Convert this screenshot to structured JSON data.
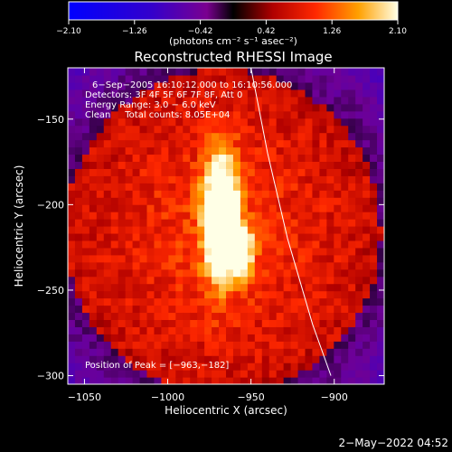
{
  "chart_data": {
    "type": "heatmap",
    "title": "Reconstructed RHESSI Image",
    "xlabel": "Heliocentric X (arcsec)",
    "ylabel": "Heliocentric Y (arcsec)",
    "xlim": [
      -1060,
      -870
    ],
    "ylim": [
      -305,
      -120
    ],
    "x_ticks": [
      -1050,
      -1000,
      -950,
      -900
    ],
    "x_tick_labels": [
      "−1050",
      "−1000",
      "−950",
      "−900"
    ],
    "y_ticks": [
      -150,
      -200,
      -250,
      -300
    ],
    "y_tick_labels": [
      "−150",
      "−200",
      "−250",
      "−300"
    ],
    "colorbar": {
      "min": -2.1,
      "max": 2.1,
      "ticks": [
        -2.1,
        -1.26,
        -0.42,
        0.42,
        1.26,
        2.1
      ],
      "tick_labels": [
        "−2.10",
        "−1.26",
        "−0.42",
        "0.42",
        "1.26",
        "2.10"
      ],
      "unit_label": "(photons cm⁻² s⁻¹ asec⁻²)"
    },
    "annotations": [
      "6−Sep−2005 16:10:12.000 to 16:10:56.000",
      "Detectors: 3F 4F 5F 6F 7F 8F, Att 0",
      "Energy Range: 3.0 − 6.0 keV",
      "Clean     Total counts: 8.05E+04"
    ],
    "peak": {
      "x": -963,
      "y": -182,
      "label": "Position of Peak = [−963,−182]"
    },
    "limb_curve": [
      [
        -950,
        -120
      ],
      [
        -940,
        -170
      ],
      [
        -928,
        -220
      ],
      [
        -913,
        -270
      ],
      [
        -902,
        -300
      ]
    ],
    "source": {
      "x": -968,
      "y": -212,
      "value": 2.1
    },
    "timestamp": "2−May−2022 04:52"
  }
}
